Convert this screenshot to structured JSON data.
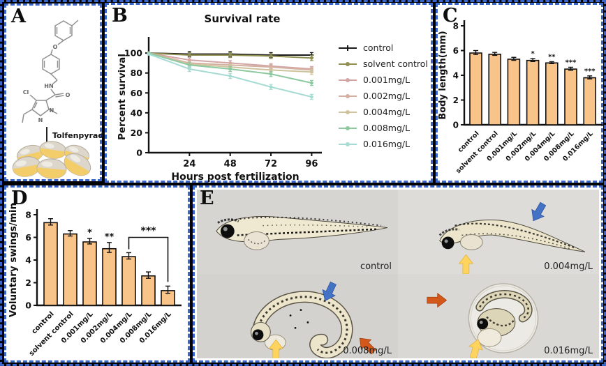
{
  "panels": {
    "a": "A",
    "b": "B",
    "c": "C",
    "d": "D",
    "e": "E"
  },
  "panel_a": {
    "compound_label": "Tolfenpyrad",
    "atoms": {
      "o_ether": "O",
      "nh": "HN",
      "o_carbonyl": "O",
      "cl": "Cl",
      "n1": "N",
      "n2": "N"
    }
  },
  "chart_data": [
    {
      "id": "survival",
      "type": "line",
      "title": "Survival rate",
      "xlabel": "Hours post fertilization",
      "ylabel": "Percent survival",
      "x": [
        0,
        24,
        48,
        72,
        96
      ],
      "xticks": [
        24,
        48,
        72,
        96
      ],
      "yticks": [
        0,
        20,
        40,
        60,
        80,
        100
      ],
      "ylim": [
        0,
        112
      ],
      "xlim": [
        0,
        102
      ],
      "grid": false,
      "legend_position": "right",
      "series": [
        {
          "name": "control",
          "color": "#1a1a1a",
          "marker": "plus",
          "values": [
            100,
            99,
            99,
            98,
            98
          ]
        },
        {
          "name": "solvent control",
          "color": "#8f8f52",
          "marker": "dot",
          "values": [
            100,
            98,
            98,
            97,
            95
          ]
        },
        {
          "name": "0.001mg/L",
          "color": "#d4a5a5",
          "marker": "dot",
          "values": [
            100,
            93,
            90,
            87,
            84
          ]
        },
        {
          "name": "0.002mg/L",
          "color": "#d3b0a0",
          "marker": "dot",
          "values": [
            100,
            90,
            88,
            86,
            83
          ]
        },
        {
          "name": "0.004mg/L",
          "color": "#cfc39e",
          "marker": "dot",
          "values": [
            100,
            89,
            86,
            83,
            81
          ]
        },
        {
          "name": "0.008mg/L",
          "color": "#8cc9a0",
          "marker": "dot",
          "values": [
            100,
            88,
            84,
            79,
            70
          ]
        },
        {
          "name": "0.016mg/L",
          "color": "#a5dbd2",
          "marker": "dot",
          "values": [
            99,
            84,
            77,
            66,
            56
          ]
        }
      ]
    },
    {
      "id": "body_length",
      "type": "bar",
      "title": "",
      "ylabel": "Body length(mm)",
      "categories": [
        "control",
        "solvent control",
        "0.001mg/L",
        "0.002mg/L",
        "0.004mg/L",
        "0.008mg/L",
        "0.016mg/L"
      ],
      "values": [
        5.8,
        5.7,
        5.3,
        5.2,
        5.0,
        4.5,
        3.8
      ],
      "errors": [
        0.2,
        0.15,
        0.15,
        0.15,
        0.1,
        0.15,
        0.15
      ],
      "sig": [
        "",
        "",
        "",
        "*",
        "**",
        "***",
        "***"
      ],
      "yticks": [
        0,
        2,
        4,
        6,
        8
      ],
      "ylim": [
        0,
        8
      ],
      "grid": false,
      "bar_color": "#F9C489"
    },
    {
      "id": "voluntary_swings",
      "type": "bar",
      "title": "",
      "ylabel": "Voluntary swings/min",
      "categories": [
        "control",
        "solvent control",
        "0.001mg/L",
        "0.002mg/L",
        "0.004mg/L",
        "0.008mg/L",
        "0.016mg/L"
      ],
      "values": [
        7.3,
        6.3,
        5.6,
        5.0,
        4.3,
        2.6,
        1.3
      ],
      "errors": [
        0.35,
        0.3,
        0.3,
        0.55,
        0.35,
        0.35,
        0.4
      ],
      "sig": [
        "",
        "",
        "*",
        "**",
        "",
        "",
        ""
      ],
      "bracket": {
        "from": 4,
        "to": 6,
        "label": "***",
        "y_value": 6.0
      },
      "yticks": [
        0,
        2,
        4,
        6,
        8
      ],
      "ylim": [
        0,
        8
      ],
      "grid": false,
      "bar_color": "#F9C489"
    }
  ],
  "panel_e": {
    "photos": [
      {
        "label": "control"
      },
      {
        "label": "0.004mg/L"
      },
      {
        "label": "0.008mg/L"
      },
      {
        "label": "0.016mg/L"
      }
    ]
  },
  "colors": {
    "background": "#000000",
    "panel_border": "#3A66CC",
    "bar_fill": "#F9C489",
    "arrow_blue": "#4472C4",
    "arrow_orange": "#D4581A",
    "arrow_yellow": "#FFD45E",
    "egg_yellow": "#F2CD6A",
    "egg_shell": "#DDD6CA"
  }
}
